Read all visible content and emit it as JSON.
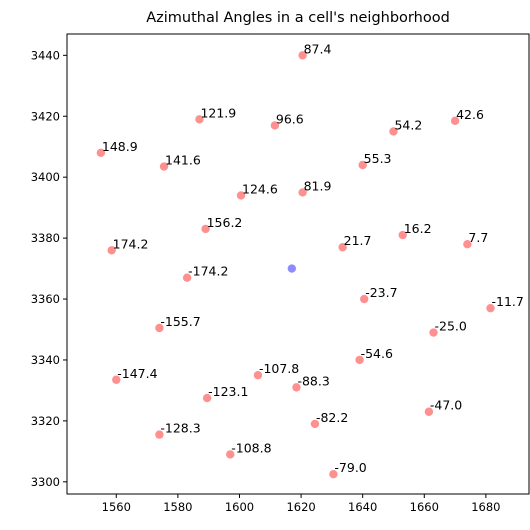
{
  "chart_data": {
    "type": "scatter",
    "title": "Azimuthal Angles in a cell's neighborhood",
    "xlabel": "",
    "ylabel": "",
    "xlim": [
      1544,
      1694
    ],
    "ylim": [
      3296,
      3447
    ],
    "x_ticks": [
      1560,
      1580,
      1600,
      1620,
      1640,
      1660,
      1680
    ],
    "y_ticks": [
      3300,
      3320,
      3340,
      3360,
      3380,
      3400,
      3420,
      3440
    ],
    "grid": false,
    "center_color": "#5b5bff",
    "neighbor_color": "#ff6b6b",
    "center": {
      "x": 1617,
      "y": 3370
    },
    "points": [
      {
        "x": 1620.5,
        "y": 3440,
        "label": "87.4"
      },
      {
        "x": 1587,
        "y": 3419,
        "label": "121.9"
      },
      {
        "x": 1611.5,
        "y": 3417,
        "label": "96.6"
      },
      {
        "x": 1650,
        "y": 3415,
        "label": "54.2"
      },
      {
        "x": 1670,
        "y": 3418.5,
        "label": "42.6"
      },
      {
        "x": 1555,
        "y": 3408,
        "label": "148.9"
      },
      {
        "x": 1575.5,
        "y": 3403.5,
        "label": "141.6"
      },
      {
        "x": 1640,
        "y": 3404,
        "label": "55.3"
      },
      {
        "x": 1600.5,
        "y": 3394,
        "label": "124.6"
      },
      {
        "x": 1620.5,
        "y": 3395,
        "label": "81.9"
      },
      {
        "x": 1589,
        "y": 3383,
        "label": "156.2"
      },
      {
        "x": 1653,
        "y": 3381,
        "label": "16.2"
      },
      {
        "x": 1558.5,
        "y": 3376,
        "label": "174.2"
      },
      {
        "x": 1633.5,
        "y": 3377,
        "label": "21.7"
      },
      {
        "x": 1674,
        "y": 3378,
        "label": "7.7"
      },
      {
        "x": 1583,
        "y": 3367,
        "label": "-174.2"
      },
      {
        "x": 1640.5,
        "y": 3360,
        "label": "-23.7"
      },
      {
        "x": 1681.5,
        "y": 3357,
        "label": "-11.7"
      },
      {
        "x": 1574,
        "y": 3350.5,
        "label": "-155.7"
      },
      {
        "x": 1663,
        "y": 3349,
        "label": "-25.0"
      },
      {
        "x": 1606,
        "y": 3335,
        "label": "-107.8"
      },
      {
        "x": 1639,
        "y": 3340,
        "label": "-54.6"
      },
      {
        "x": 1560,
        "y": 3333.5,
        "label": "-147.4"
      },
      {
        "x": 1618.5,
        "y": 3331,
        "label": "-88.3"
      },
      {
        "x": 1589.5,
        "y": 3327.5,
        "label": "-123.1"
      },
      {
        "x": 1661.5,
        "y": 3323,
        "label": "-47.0"
      },
      {
        "x": 1624.5,
        "y": 3319,
        "label": "-82.2"
      },
      {
        "x": 1574,
        "y": 3315.5,
        "label": "-128.3"
      },
      {
        "x": 1597,
        "y": 3309,
        "label": "-108.8"
      },
      {
        "x": 1630.5,
        "y": 3302.5,
        "label": "-79.0"
      }
    ]
  }
}
